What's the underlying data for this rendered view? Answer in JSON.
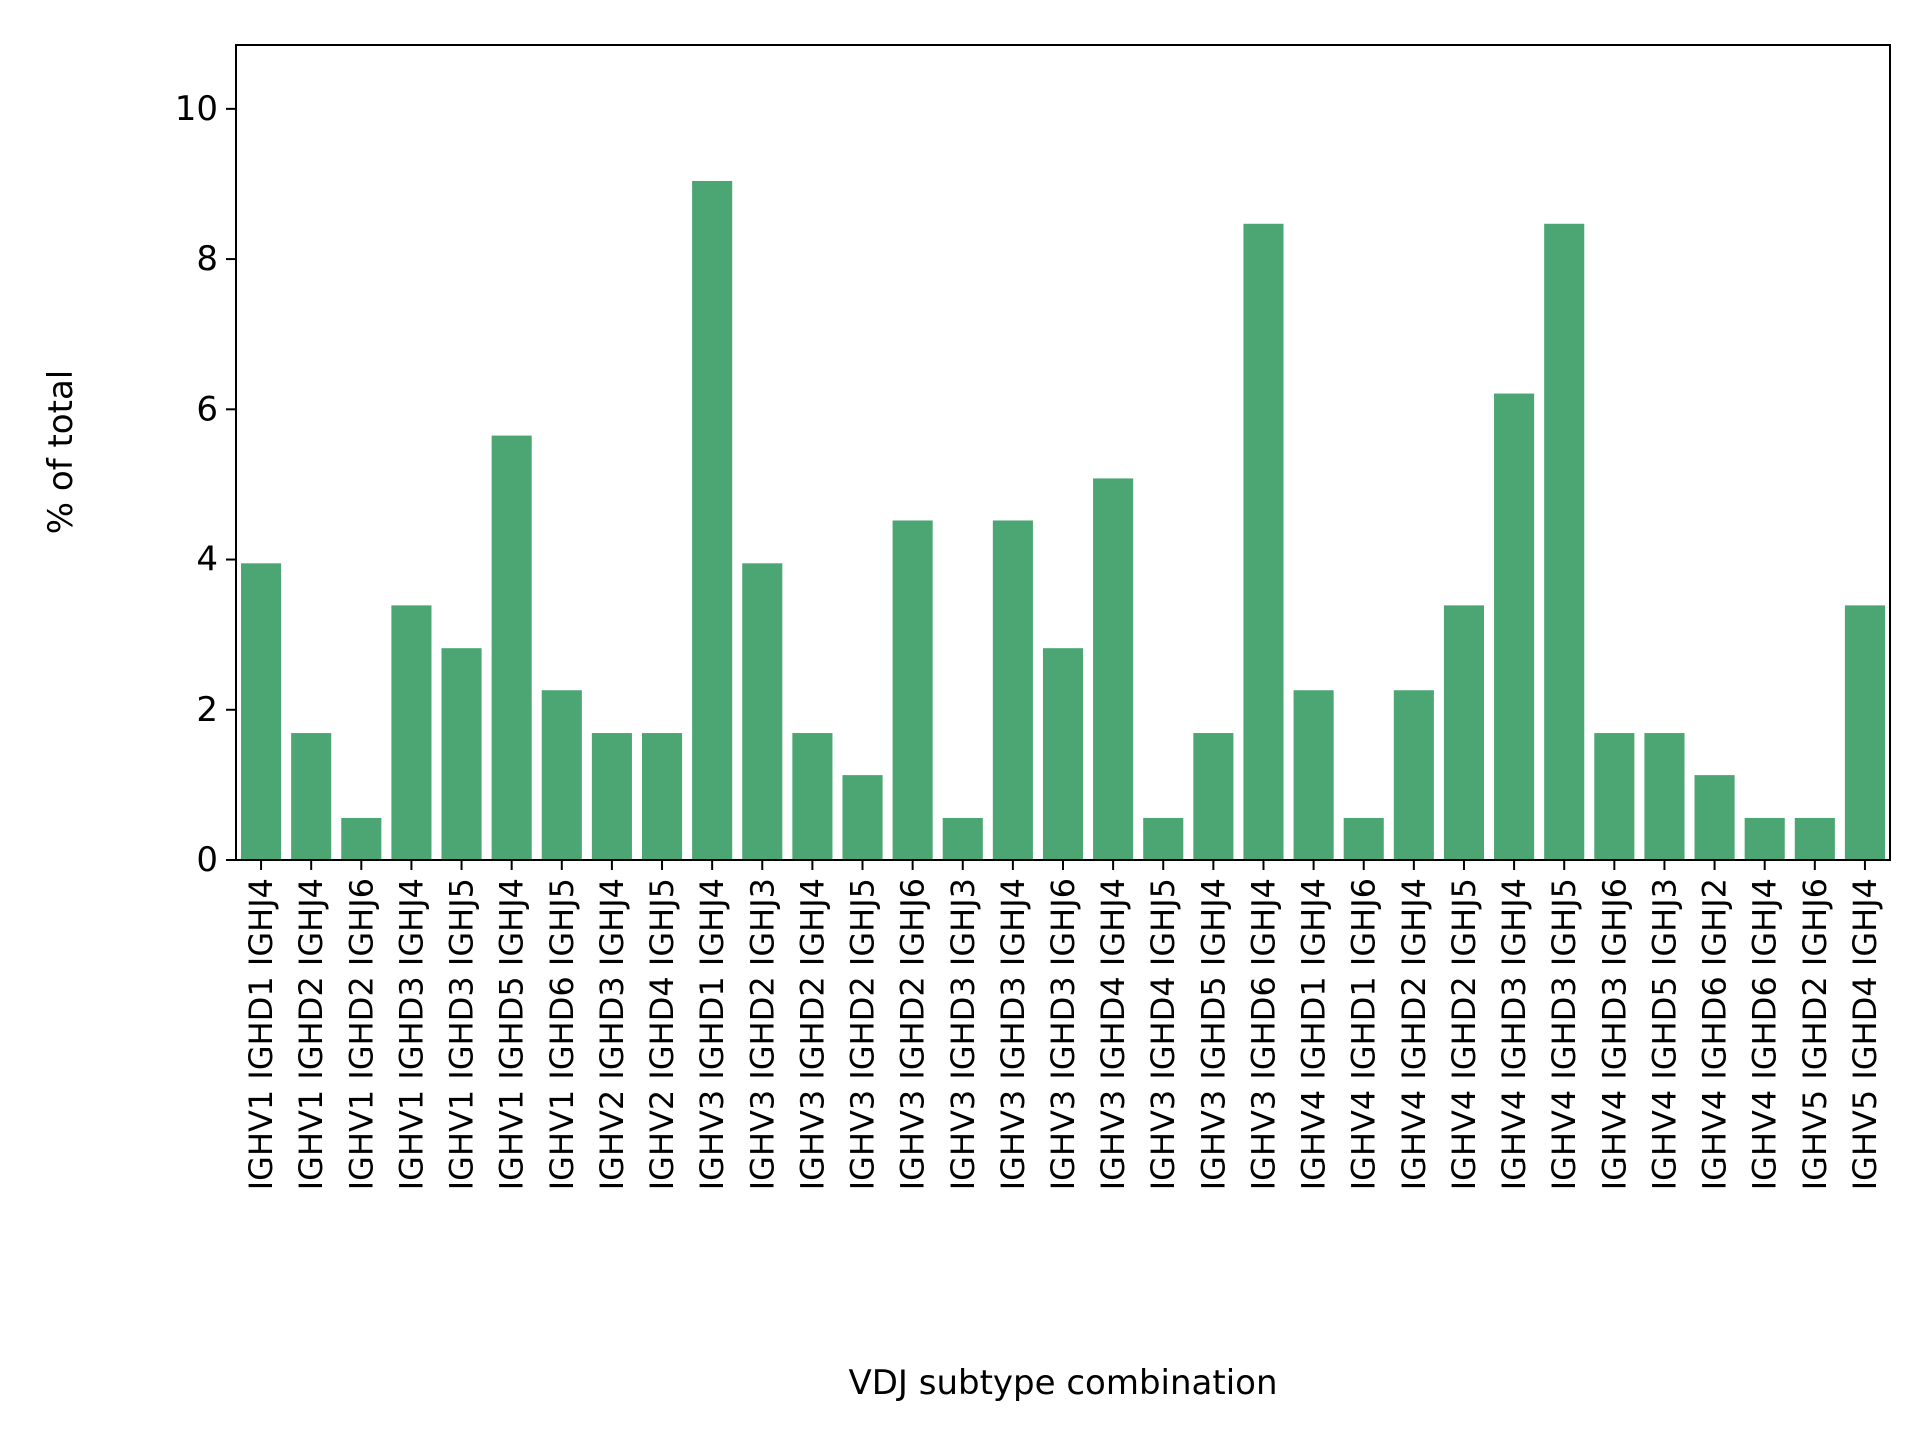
{
  "chart_data": {
    "type": "bar",
    "title": "",
    "xlabel": "VDJ subtype combination",
    "ylabel": "% of total",
    "ylim": [
      0,
      10.85
    ],
    "yticks": [
      0,
      2,
      4,
      6,
      8,
      10
    ],
    "grid": false,
    "legend": "none",
    "bar_color": "#4ca674",
    "categories": [
      "IGHV1 IGHD1 IGHJ4",
      "IGHV1 IGHD2 IGHJ4",
      "IGHV1 IGHD2 IGHJ6",
      "IGHV1 IGHD3 IGHJ4",
      "IGHV1 IGHD3 IGHJ5",
      "IGHV1 IGHD5 IGHJ4",
      "IGHV1 IGHD6 IGHJ5",
      "IGHV2 IGHD3 IGHJ4",
      "IGHV2 IGHD4 IGHJ5",
      "IGHV3 IGHD1 IGHJ4",
      "IGHV3 IGHD2 IGHJ3",
      "IGHV3 IGHD2 IGHJ4",
      "IGHV3 IGHD2 IGHJ5",
      "IGHV3 IGHD2 IGHJ6",
      "IGHV3 IGHD3 IGHJ3",
      "IGHV3 IGHD3 IGHJ4",
      "IGHV3 IGHD3 IGHJ6",
      "IGHV3 IGHD4 IGHJ4",
      "IGHV3 IGHD4 IGHJ5",
      "IGHV3 IGHD5 IGHJ4",
      "IGHV3 IGHD6 IGHJ4",
      "IGHV4 IGHD1 IGHJ4",
      "IGHV4 IGHD1 IGHJ6",
      "IGHV4 IGHD2 IGHJ4",
      "IGHV4 IGHD2 IGHJ5",
      "IGHV4 IGHD3 IGHJ4",
      "IGHV4 IGHD3 IGHJ5",
      "IGHV4 IGHD3 IGHJ6",
      "IGHV4 IGHD5 IGHJ3",
      "IGHV4 IGHD6 IGHJ2",
      "IGHV4 IGHD6 IGHJ4",
      "IGHV5 IGHD2 IGHJ6",
      "IGHV5 IGHD4 IGHJ4"
    ],
    "values": [
      3.95,
      1.69,
      0.56,
      3.39,
      2.82,
      5.65,
      2.26,
      1.69,
      1.69,
      9.04,
      3.95,
      1.69,
      1.13,
      4.52,
      0.56,
      4.52,
      2.82,
      5.08,
      0.56,
      1.69,
      8.47,
      2.26,
      0.56,
      2.26,
      3.39,
      6.21,
      8.47,
      1.69,
      1.69,
      1.13,
      0.56,
      0.56,
      3.39
    ]
  }
}
